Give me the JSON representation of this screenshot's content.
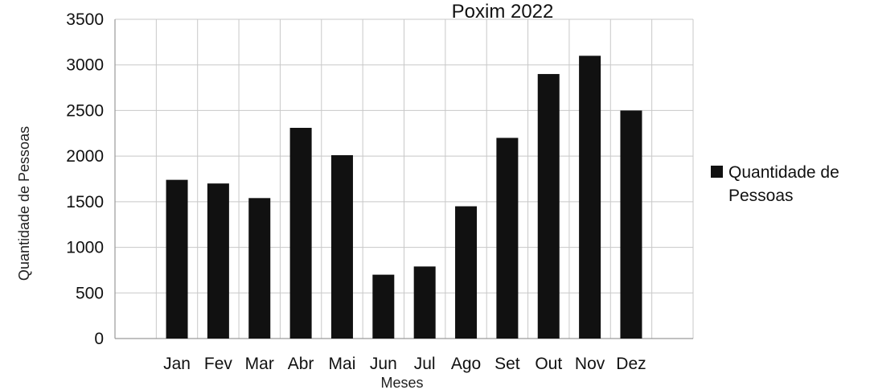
{
  "chart_data": {
    "type": "bar",
    "title": "Poxim 2022",
    "xlabel": "Meses",
    "ylabel": "Quantidade de Pessoas",
    "categories": [
      "Jan",
      "Fev",
      "Mar",
      "Abr",
      "Mai",
      "Jun",
      "Jul",
      "Ago",
      "Set",
      "Out",
      "Nov",
      "Dez"
    ],
    "series": [
      {
        "name": "Quantidade de Pessoas",
        "values": [
          1740,
          1700,
          1540,
          2310,
          2010,
          700,
          790,
          1450,
          2200,
          2900,
          3100,
          2500
        ]
      }
    ],
    "ylim": [
      0,
      3500
    ],
    "yticks": [
      "0",
      "500",
      "1000",
      "1500",
      "2000",
      "2500",
      "3000",
      "3500"
    ],
    "grid": true,
    "legend": {
      "position": "right",
      "lines": [
        "Quantidade de",
        "Pessoas"
      ]
    },
    "colors": {
      "bar": "#111111",
      "grid": "#c8c8c8"
    }
  }
}
